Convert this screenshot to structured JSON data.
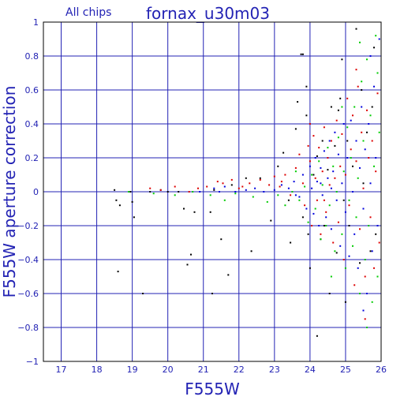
{
  "chart_data": {
    "type": "scatter",
    "corner_label": "All chips",
    "title": "fornax_u30m03",
    "xlabel": "F555W",
    "ylabel": "F555W aperture correction",
    "xlim": [
      16.5,
      26
    ],
    "ylim": [
      -1,
      1
    ],
    "grid": true,
    "x_ticks": [
      17,
      18,
      19,
      20,
      21,
      22,
      23,
      24,
      25,
      26
    ],
    "y_ticks": [
      -1,
      -0.8,
      -0.6,
      -0.4,
      -0.2,
      0,
      0.2,
      0.4,
      0.6,
      0.8,
      1
    ],
    "x_tick_labels": [
      "17",
      "18",
      "19",
      "20",
      "21",
      "22",
      "23",
      "24",
      "25",
      "26"
    ],
    "y_tick_labels": [
      "−1",
      "−0.8",
      "−0.6",
      "−0.4",
      "−0.2",
      "0",
      "0.2",
      "0.4",
      "0.6",
      "0.8",
      "1"
    ],
    "colors": {
      "axis": "#2323b4",
      "grid": "#2323b4",
      "frame": "#000000"
    },
    "series": [
      {
        "color": "#000000",
        "points": [
          [
            18.5,
            0.01
          ],
          [
            18.55,
            -0.05
          ],
          [
            18.6,
            -0.47
          ],
          [
            18.65,
            -0.08
          ],
          [
            18.95,
            0.0
          ],
          [
            19.0,
            -0.06
          ],
          [
            19.05,
            -0.15
          ],
          [
            19.3,
            -0.6
          ],
          [
            19.5,
            0.0
          ],
          [
            19.8,
            0.01
          ],
          [
            20.0,
            0.0
          ],
          [
            20.3,
            0.0
          ],
          [
            20.45,
            -0.1
          ],
          [
            20.55,
            -0.43
          ],
          [
            20.65,
            -0.37
          ],
          [
            20.75,
            -0.12
          ],
          [
            21.2,
            -0.12
          ],
          [
            21.25,
            -0.6
          ],
          [
            21.5,
            -0.28
          ],
          [
            21.7,
            -0.49
          ],
          [
            21.3,
            0.01
          ],
          [
            21.8,
            0.04
          ],
          [
            22.2,
            0.08
          ],
          [
            22.35,
            -0.35
          ],
          [
            22.6,
            0.08
          ],
          [
            22.9,
            -0.17
          ],
          [
            23.1,
            0.15
          ],
          [
            23.25,
            0.23
          ],
          [
            23.4,
            -0.05
          ],
          [
            23.45,
            -0.3
          ],
          [
            23.6,
            0.37
          ],
          [
            23.65,
            0.53
          ],
          [
            23.75,
            0.81
          ],
          [
            23.8,
            0.81
          ],
          [
            23.8,
            -0.15
          ],
          [
            23.9,
            0.45
          ],
          [
            23.95,
            -0.25
          ],
          [
            24.0,
            -0.45
          ],
          [
            24.1,
            0.1
          ],
          [
            24.2,
            0.21
          ],
          [
            24.3,
            -0.28
          ],
          [
            24.35,
            0.3
          ],
          [
            24.4,
            -0.2
          ],
          [
            24.5,
            0.13
          ],
          [
            24.55,
            -0.6
          ],
          [
            24.6,
            0.5
          ],
          [
            24.7,
            0.27
          ],
          [
            24.75,
            -0.36
          ],
          [
            24.8,
            0.48
          ],
          [
            24.85,
            0.55
          ],
          [
            24.9,
            0.78
          ],
          [
            24.95,
            -0.05
          ],
          [
            25.0,
            -0.65
          ],
          [
            25.05,
            0.3
          ],
          [
            25.1,
            -0.2
          ],
          [
            25.2,
            0.15
          ],
          [
            25.3,
            0.96
          ],
          [
            25.4,
            -0.42
          ],
          [
            25.45,
            0.6
          ],
          [
            25.5,
            0.05
          ],
          [
            25.6,
            0.35
          ],
          [
            25.7,
            -0.35
          ],
          [
            25.75,
            0.5
          ],
          [
            25.8,
            0.85
          ],
          [
            25.85,
            -0.25
          ],
          [
            25.9,
            0.7
          ],
          [
            24.2,
            -0.85
          ],
          [
            23.9,
            0.62
          ]
        ]
      },
      {
        "color": "#dd0000",
        "points": [
          [
            19.5,
            0.02
          ],
          [
            19.8,
            0.01
          ],
          [
            20.2,
            0.03
          ],
          [
            20.6,
            0.0
          ],
          [
            20.85,
            0.02
          ],
          [
            21.1,
            0.03
          ],
          [
            21.4,
            0.06
          ],
          [
            21.55,
            0.05
          ],
          [
            21.8,
            0.07
          ],
          [
            22.0,
            0.02
          ],
          [
            22.3,
            0.05
          ],
          [
            22.6,
            0.07
          ],
          [
            22.85,
            0.04
          ],
          [
            23.0,
            0.09
          ],
          [
            23.15,
            0.03
          ],
          [
            23.3,
            0.1
          ],
          [
            23.45,
            -0.02
          ],
          [
            23.6,
            0.14
          ],
          [
            23.7,
            0.22
          ],
          [
            23.8,
            0.05
          ],
          [
            23.85,
            -0.08
          ],
          [
            23.95,
            0.27
          ],
          [
            24.0,
            0.18
          ],
          [
            24.05,
            -0.2
          ],
          [
            24.1,
            0.33
          ],
          [
            24.15,
            0.08
          ],
          [
            24.2,
            -0.05
          ],
          [
            24.25,
            0.26
          ],
          [
            24.3,
            -0.25
          ],
          [
            24.35,
            0.12
          ],
          [
            24.4,
            0.38
          ],
          [
            24.45,
            -0.12
          ],
          [
            24.5,
            0.2
          ],
          [
            24.55,
            0.04
          ],
          [
            24.6,
            0.3
          ],
          [
            24.65,
            -0.3
          ],
          [
            24.7,
            0.08
          ],
          [
            24.75,
            0.42
          ],
          [
            24.8,
            -0.18
          ],
          [
            24.85,
            0.15
          ],
          [
            24.9,
            0.34
          ],
          [
            24.95,
            -0.4
          ],
          [
            25.0,
            0.1
          ],
          [
            25.05,
            0.55
          ],
          [
            25.1,
            -0.08
          ],
          [
            25.15,
            0.25
          ],
          [
            25.2,
            0.45
          ],
          [
            25.25,
            -0.55
          ],
          [
            25.3,
            0.18
          ],
          [
            25.35,
            0.62
          ],
          [
            25.4,
            -0.22
          ],
          [
            25.45,
            0.35
          ],
          [
            25.5,
            0.02
          ],
          [
            25.55,
            -0.5
          ],
          [
            25.6,
            0.48
          ],
          [
            25.65,
            0.2
          ],
          [
            25.7,
            -0.15
          ],
          [
            25.75,
            0.3
          ],
          [
            25.8,
            -0.45
          ],
          [
            25.85,
            0.12
          ],
          [
            25.9,
            0.58
          ],
          [
            25.95,
            -0.3
          ],
          [
            25.55,
            -0.75
          ],
          [
            25.3,
            0.72
          ],
          [
            24.4,
            -0.05
          ],
          [
            24.0,
            0.4
          ],
          [
            23.2,
            0.06
          ],
          [
            22.1,
            0.03
          ]
        ]
      },
      {
        "color": "#0000dd",
        "points": [
          [
            20.9,
            0.0
          ],
          [
            21.3,
            0.02
          ],
          [
            21.45,
            0.0
          ],
          [
            21.6,
            0.03
          ],
          [
            21.9,
            0.0
          ],
          [
            22.2,
            0.01
          ],
          [
            22.45,
            0.02
          ],
          [
            22.7,
            0.0
          ],
          [
            23.0,
            0.01
          ],
          [
            23.2,
            0.04
          ],
          [
            23.4,
            0.02
          ],
          [
            23.55,
            0.06
          ],
          [
            23.7,
            -0.03
          ],
          [
            23.8,
            0.1
          ],
          [
            23.9,
            -0.1
          ],
          [
            24.0,
            0.15
          ],
          [
            24.05,
            0.02
          ],
          [
            24.1,
            -0.13
          ],
          [
            24.15,
            0.2
          ],
          [
            24.2,
            0.06
          ],
          [
            24.25,
            -0.2
          ],
          [
            24.3,
            0.14
          ],
          [
            24.35,
            -0.02
          ],
          [
            24.4,
            0.24
          ],
          [
            24.45,
            -0.15
          ],
          [
            24.5,
            0.08
          ],
          [
            24.55,
            0.3
          ],
          [
            24.6,
            -0.22
          ],
          [
            24.65,
            0.12
          ],
          [
            24.7,
            0.35
          ],
          [
            24.75,
            -0.05
          ],
          [
            24.8,
            0.22
          ],
          [
            24.85,
            -0.32
          ],
          [
            24.9,
            0.05
          ],
          [
            24.95,
            0.4
          ],
          [
            25.0,
            -0.12
          ],
          [
            25.05,
            0.2
          ],
          [
            25.1,
            -0.38
          ],
          [
            25.15,
            0.42
          ],
          [
            25.2,
            0.0
          ],
          [
            25.25,
            -0.25
          ],
          [
            25.3,
            0.3
          ],
          [
            25.35,
            -0.45
          ],
          [
            25.4,
            0.14
          ],
          [
            25.45,
            0.5
          ],
          [
            25.5,
            -0.1
          ],
          [
            25.55,
            0.25
          ],
          [
            25.6,
            -0.6
          ],
          [
            25.65,
            0.4
          ],
          [
            25.7,
            0.05
          ],
          [
            25.75,
            -0.35
          ],
          [
            25.8,
            0.62
          ],
          [
            25.85,
            0.2
          ],
          [
            25.9,
            -0.2
          ],
          [
            25.95,
            0.9
          ],
          [
            25.7,
            0.8
          ],
          [
            25.5,
            -0.7
          ],
          [
            24.6,
            0.02
          ],
          [
            24.3,
            0.05
          ],
          [
            23.6,
            -0.02
          ]
        ]
      },
      {
        "color": "#00cc00",
        "points": [
          [
            18.9,
            0.0
          ],
          [
            19.6,
            -0.01
          ],
          [
            20.2,
            -0.02
          ],
          [
            20.7,
            0.0
          ],
          [
            21.2,
            -0.02
          ],
          [
            21.6,
            -0.05
          ],
          [
            21.9,
            -0.01
          ],
          [
            22.4,
            -0.03
          ],
          [
            22.8,
            -0.06
          ],
          [
            23.1,
            -0.02
          ],
          [
            23.3,
            -0.08
          ],
          [
            23.5,
            0.0
          ],
          [
            23.7,
            -0.05
          ],
          [
            23.85,
            0.03
          ],
          [
            23.95,
            -0.18
          ],
          [
            24.05,
            0.1
          ],
          [
            24.15,
            -0.1
          ],
          [
            24.25,
            0.18
          ],
          [
            24.3,
            -0.28
          ],
          [
            24.35,
            0.04
          ],
          [
            24.45,
            -0.2
          ],
          [
            24.5,
            0.26
          ],
          [
            24.55,
            -0.08
          ],
          [
            24.65,
            0.15
          ],
          [
            24.7,
            -0.35
          ],
          [
            24.75,
            0.0
          ],
          [
            24.8,
            0.32
          ],
          [
            24.9,
            -0.25
          ],
          [
            24.95,
            0.12
          ],
          [
            25.0,
            -0.45
          ],
          [
            25.05,
            0.38
          ],
          [
            25.1,
            -0.05
          ],
          [
            25.15,
            0.2
          ],
          [
            25.2,
            -0.32
          ],
          [
            25.25,
            0.5
          ],
          [
            25.3,
            -0.15
          ],
          [
            25.35,
            0.08
          ],
          [
            25.4,
            -0.6
          ],
          [
            25.45,
            0.65
          ],
          [
            25.5,
            0.3
          ],
          [
            25.55,
            -0.4
          ],
          [
            25.6,
            0.78
          ],
          [
            25.65,
            -0.2
          ],
          [
            25.7,
            0.45
          ],
          [
            25.75,
            -0.65
          ],
          [
            25.8,
            0.15
          ],
          [
            25.85,
            0.92
          ],
          [
            25.9,
            -0.5
          ],
          [
            25.95,
            0.35
          ],
          [
            25.6,
            -0.8
          ],
          [
            25.4,
            0.88
          ],
          [
            25.9,
            0.7
          ],
          [
            24.9,
            0.5
          ],
          [
            24.6,
            -0.5
          ],
          [
            23.6,
            0.12
          ]
        ]
      }
    ]
  }
}
